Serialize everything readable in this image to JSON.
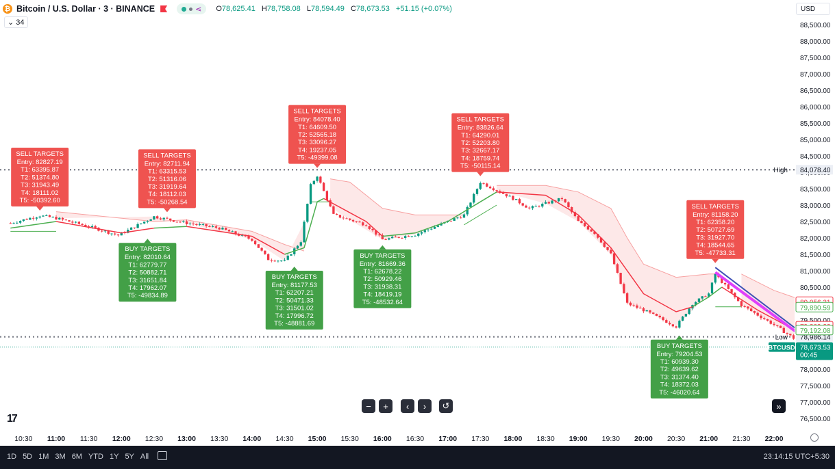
{
  "header": {
    "title": "Bitcoin / U.S. Dollar · 3 · BINANCE",
    "coin_icon": "bitcoin-icon",
    "ohlc": [
      {
        "k": "O",
        "v": "78,625.41"
      },
      {
        "k": "H",
        "v": "78,758.08"
      },
      {
        "k": "L",
        "v": "78,594.49"
      },
      {
        "k": "C",
        "v": "78,673.53"
      }
    ],
    "change": "+51.15 (+0.07%)",
    "interval_value": "34"
  },
  "currency": "USD",
  "footer": {
    "ranges": [
      "1D",
      "5D",
      "1M",
      "3M",
      "6M",
      "YTD",
      "1Y",
      "5Y",
      "All"
    ],
    "clock": "23:14:15 UTC+5:30"
  },
  "nav_buttons": [
    "−",
    "+",
    "‹",
    "›",
    "↺"
  ],
  "chart_data": {
    "type": "candlestick",
    "symbol": "BTCUSD",
    "ylim": [
      76200,
      88900
    ],
    "y_ticks": [
      76500,
      77000,
      77500,
      78000,
      78500,
      79000,
      79500,
      80000,
      80500,
      81000,
      81500,
      82000,
      82500,
      83000,
      83500,
      84000,
      84500,
      85000,
      85500,
      86000,
      86500,
      87000,
      87500,
      88000,
      88500
    ],
    "y_tick_labels": [
      "76,500.00",
      "77,000.00",
      "77,500.00",
      "78,000.00",
      "78,500.00",
      "79,000.00",
      "79,500.00",
      "80,000.00",
      "80,500.00",
      "81,000.00",
      "81,500.00",
      "82,000.00",
      "82,500.00",
      "83,000.00",
      "83,500.00",
      "84,000.00",
      "84,500.00",
      "85,000.00",
      "85,500.00",
      "86,000.00",
      "86,500.00",
      "87,000.00",
      "87,500.00",
      "88,000.00",
      "88,500.00"
    ],
    "x_time_range": [
      "10:18",
      "22:30"
    ],
    "x_ticks": [
      {
        "t": "10:30",
        "bold": false
      },
      {
        "t": "11:00",
        "bold": true
      },
      {
        "t": "11:30",
        "bold": false
      },
      {
        "t": "12:00",
        "bold": true
      },
      {
        "t": "12:30",
        "bold": false
      },
      {
        "t": "13:00",
        "bold": true
      },
      {
        "t": "13:30",
        "bold": false
      },
      {
        "t": "14:00",
        "bold": true
      },
      {
        "t": "14:30",
        "bold": false
      },
      {
        "t": "15:00",
        "bold": true
      },
      {
        "t": "15:30",
        "bold": false
      },
      {
        "t": "16:00",
        "bold": true
      },
      {
        "t": "16:30",
        "bold": false
      },
      {
        "t": "17:00",
        "bold": true
      },
      {
        "t": "17:30",
        "bold": false
      },
      {
        "t": "18:00",
        "bold": true
      },
      {
        "t": "18:30",
        "bold": false
      },
      {
        "t": "19:00",
        "bold": true
      },
      {
        "t": "19:30",
        "bold": false
      },
      {
        "t": "20:00",
        "bold": true
      },
      {
        "t": "20:30",
        "bold": false
      },
      {
        "t": "21:00",
        "bold": true
      },
      {
        "t": "21:30",
        "bold": false
      },
      {
        "t": "22:00",
        "bold": true
      }
    ],
    "close_anchors": [
      {
        "t": "10:18",
        "p": 82450
      },
      {
        "t": "10:45",
        "p": 82680
      },
      {
        "t": "11:00",
        "p": 82600
      },
      {
        "t": "11:30",
        "p": 82350
      },
      {
        "t": "11:57",
        "p": 82080
      },
      {
        "t": "12:30",
        "p": 82650
      },
      {
        "t": "13:00",
        "p": 82450
      },
      {
        "t": "13:30",
        "p": 82300
      },
      {
        "t": "14:00",
        "p": 81950
      },
      {
        "t": "14:15",
        "p": 81350
      },
      {
        "t": "14:30",
        "p": 81300
      },
      {
        "t": "14:45",
        "p": 81900
      },
      {
        "t": "14:54",
        "p": 83600
      },
      {
        "t": "15:00",
        "p": 83900
      },
      {
        "t": "15:15",
        "p": 82700
      },
      {
        "t": "15:45",
        "p": 82400
      },
      {
        "t": "16:00",
        "p": 81950
      },
      {
        "t": "16:30",
        "p": 82100
      },
      {
        "t": "17:00",
        "p": 82500
      },
      {
        "t": "17:15",
        "p": 82700
      },
      {
        "t": "17:30",
        "p": 83700
      },
      {
        "t": "18:00",
        "p": 83200
      },
      {
        "t": "18:15",
        "p": 82900
      },
      {
        "t": "18:45",
        "p": 83200
      },
      {
        "t": "19:00",
        "p": 82500
      },
      {
        "t": "19:15",
        "p": 82150
      },
      {
        "t": "19:30",
        "p": 81500
      },
      {
        "t": "19:45",
        "p": 80000
      },
      {
        "t": "20:00",
        "p": 79800
      },
      {
        "t": "20:30",
        "p": 79300
      },
      {
        "t": "20:45",
        "p": 80000
      },
      {
        "t": "21:00",
        "p": 80300
      },
      {
        "t": "21:06",
        "p": 80900
      },
      {
        "t": "21:30",
        "p": 79950
      },
      {
        "t": "22:00",
        "p": 79350
      },
      {
        "t": "22:30",
        "p": 78673.53
      }
    ],
    "supertrend_upper": [
      {
        "t": "11:00",
        "p": 82800
      },
      {
        "t": "12:30",
        "p": 82500
      },
      {
        "t": "13:00",
        "p": 82550
      },
      {
        "t": "14:00",
        "p": 82200
      },
      {
        "t": "14:30",
        "p": 81800
      },
      {
        "t": "14:48",
        "p": 81600
      }
    ],
    "supertrend_upper2": [
      {
        "t": "15:12",
        "p": 83800
      },
      {
        "t": "15:30",
        "p": 83700
      },
      {
        "t": "16:00",
        "p": 82900
      },
      {
        "t": "16:30",
        "p": 82700
      },
      {
        "t": "17:00",
        "p": 82700
      },
      {
        "t": "17:15",
        "p": 82700
      }
    ],
    "supertrend_upper3": [
      {
        "t": "17:45",
        "p": 83600
      },
      {
        "t": "18:30",
        "p": 83600
      },
      {
        "t": "19:00",
        "p": 83400
      },
      {
        "t": "19:30",
        "p": 82900
      },
      {
        "t": "19:45",
        "p": 82000
      },
      {
        "t": "20:00",
        "p": 81200
      },
      {
        "t": "20:30",
        "p": 80800
      },
      {
        "t": "21:00",
        "p": 80900
      },
      {
        "t": "21:06",
        "p": 80900
      }
    ],
    "supertrend_upper4": [
      {
        "t": "21:30",
        "p": 80900
      },
      {
        "t": "22:00",
        "p": 80400
      },
      {
        "t": "22:30",
        "p": 80056.31
      }
    ],
    "supertrend_lower": [
      {
        "t": "10:18",
        "p": 82200
      },
      {
        "t": "11:00",
        "p": 82200
      }
    ],
    "supertrend_lower2": [
      {
        "t": "14:54",
        "p": 83100
      },
      {
        "t": "15:12",
        "p": 83100
      }
    ],
    "supertrend_lower3": [
      {
        "t": "17:15",
        "p": 82400
      },
      {
        "t": "17:45",
        "p": 83000
      }
    ],
    "supertrend_lower4": [
      {
        "t": "21:06",
        "p": 79900
      },
      {
        "t": "21:30",
        "p": 79900
      }
    ],
    "ma_segments": [
      {
        "color": "#4caf50",
        "points": [
          {
            "t": "10:18",
            "p": 82300
          },
          {
            "t": "11:00",
            "p": 82500
          }
        ]
      },
      {
        "color": "#f23645",
        "points": [
          {
            "t": "11:00",
            "p": 82500
          },
          {
            "t": "12:00",
            "p": 82150
          },
          {
            "t": "12:30",
            "p": 82300
          }
        ]
      },
      {
        "color": "#4caf50",
        "points": [
          {
            "t": "12:30",
            "p": 82300
          },
          {
            "t": "13:00",
            "p": 82350
          }
        ]
      },
      {
        "color": "#f23645",
        "points": [
          {
            "t": "13:00",
            "p": 82350
          },
          {
            "t": "14:00",
            "p": 82050
          },
          {
            "t": "14:30",
            "p": 81500
          }
        ]
      },
      {
        "color": "#4caf50",
        "points": [
          {
            "t": "14:30",
            "p": 81500
          },
          {
            "t": "14:48",
            "p": 81700
          },
          {
            "t": "15:00",
            "p": 83100
          },
          {
            "t": "15:06",
            "p": 83200
          }
        ]
      },
      {
        "color": "#f23645",
        "points": [
          {
            "t": "15:06",
            "p": 83200
          },
          {
            "t": "15:45",
            "p": 82500
          },
          {
            "t": "16:00",
            "p": 82050
          }
        ]
      },
      {
        "color": "#4caf50",
        "points": [
          {
            "t": "16:00",
            "p": 82050
          },
          {
            "t": "16:30",
            "p": 82150
          },
          {
            "t": "17:00",
            "p": 82500
          },
          {
            "t": "17:30",
            "p": 83100
          },
          {
            "t": "17:45",
            "p": 83400
          }
        ]
      },
      {
        "color": "#f23645",
        "points": [
          {
            "t": "17:45",
            "p": 83400
          },
          {
            "t": "18:30",
            "p": 83300
          },
          {
            "t": "19:00",
            "p": 82700
          },
          {
            "t": "19:30",
            "p": 81700
          },
          {
            "t": "20:00",
            "p": 80300
          },
          {
            "t": "20:30",
            "p": 79750
          },
          {
            "t": "20:45",
            "p": 79900
          }
        ]
      },
      {
        "color": "#4caf50",
        "points": [
          {
            "t": "20:45",
            "p": 79900
          },
          {
            "t": "21:00",
            "p": 80200
          },
          {
            "t": "21:12",
            "p": 80500
          }
        ]
      },
      {
        "color": "#f23645",
        "points": [
          {
            "t": "21:12",
            "p": 80500
          },
          {
            "t": "21:45",
            "p": 79800
          },
          {
            "t": "22:30",
            "p": 79000
          }
        ]
      }
    ],
    "trendlines": [
      {
        "color": "#3f51b5",
        "from": {
          "t": "21:06",
          "p": 81100
        },
        "to": {
          "t": "22:30",
          "p": 78986
        }
      },
      {
        "color": "#e040fb",
        "from": {
          "t": "21:06",
          "p": 80950
        },
        "to": {
          "t": "22:30",
          "p": 78900
        }
      }
    ],
    "high_line": {
      "label": "High",
      "value": "84,078.40",
      "p": 84078.4
    },
    "low_line": {
      "label": "Low",
      "value": "78,986.14",
      "p": 78986.14
    },
    "price_tags": [
      {
        "value": "80,056.31",
        "p": 80056.31,
        "color": "#f23645",
        "style": "outline"
      },
      {
        "value": "79,890.59",
        "p": 79890.59,
        "color": "#4caf50",
        "style": "outline"
      },
      {
        "value": "79,309.22",
        "p": 79309.22,
        "color": "#f23645",
        "style": "outline"
      },
      {
        "value": "79,192.08",
        "p": 79192.08,
        "color": "#4caf50",
        "style": "outline"
      }
    ],
    "last_price": {
      "symbol": "BTCUSD",
      "value": "78,673.53",
      "p": 78673.53,
      "countdown": "00:45",
      "color": "#089981"
    },
    "target_boxes": [
      {
        "type": "sell",
        "title": "SELL TARGETS",
        "anchor_t": "10:45",
        "anchor_p": 82750,
        "lines": [
          "Entry: 82827.19",
          "T1: 63395.87",
          "T2: 51374.80",
          "T3: 31943.49",
          "T4: 18111.02",
          "T5: -50392.60"
        ]
      },
      {
        "type": "buy",
        "title": "BUY TARGETS",
        "anchor_t": "12:24",
        "anchor_p": 82100,
        "lines": [
          "Entry: 82010.64",
          "T1: 62779.77",
          "T2: 50882.71",
          "T3: 31651.84",
          "T4: 17962.07",
          "T5: -49834.89"
        ]
      },
      {
        "type": "sell",
        "title": "SELL TARGETS",
        "anchor_t": "12:42",
        "anchor_p": 82700,
        "lines": [
          "Entry: 82711.94",
          "T1: 63315.53",
          "T2: 51316.06",
          "T3: 31919.64",
          "T4: 18112.03",
          "T5: -50268.54"
        ]
      },
      {
        "type": "buy",
        "title": "BUY TARGETS",
        "anchor_t": "14:39",
        "anchor_p": 81250,
        "lines": [
          "Entry: 81177.53",
          "T1: 62207.21",
          "T2: 50471.33",
          "T3: 31501.02",
          "T4: 17996.72",
          "T5: -48881.69"
        ]
      },
      {
        "type": "sell",
        "title": "SELL TARGETS",
        "anchor_t": "15:00",
        "anchor_p": 84050,
        "lines": [
          "Entry: 84078.40",
          "T1: 64609.50",
          "T2: 52565.18",
          "T3: 33096.27",
          "T4: 19237.05",
          "T5: -49399.08"
        ]
      },
      {
        "type": "buy",
        "title": "BUY TARGETS",
        "anchor_t": "16:00",
        "anchor_p": 81900,
        "lines": [
          "Entry: 81669.36",
          "T1: 62678.22",
          "T2: 50929.46",
          "T3: 31938.31",
          "T4: 18419.19",
          "T5: -48532.64"
        ]
      },
      {
        "type": "sell",
        "title": "SELL TARGETS",
        "anchor_t": "17:30",
        "anchor_p": 83800,
        "lines": [
          "Entry: 83826.64",
          "T1: 64290.01",
          "T2: 52203.80",
          "T3: 32667.17",
          "T4: 18759.74",
          "T5: -50115.14"
        ]
      },
      {
        "type": "buy",
        "title": "BUY TARGETS",
        "anchor_t": "20:33",
        "anchor_p": 79150,
        "lines": [
          "Entry: 79204.53",
          "T1: 60939.30",
          "T2: 49639.62",
          "T3: 31374.40",
          "T4: 18372.03",
          "T5: -46020.64"
        ]
      },
      {
        "type": "sell",
        "title": "SELL TARGETS",
        "anchor_t": "21:06",
        "anchor_p": 81150,
        "lines": [
          "Entry: 81158.20",
          "T1: 62358.20",
          "T2: 50727.69",
          "T3: 31927.70",
          "T4: 18544.65",
          "T5: -47733.31"
        ]
      }
    ],
    "colors": {
      "up": "#089981",
      "down": "#f23645",
      "buy_box": "#43a047",
      "sell_box": "#ef5350",
      "cloud": "#fde4e4"
    }
  }
}
